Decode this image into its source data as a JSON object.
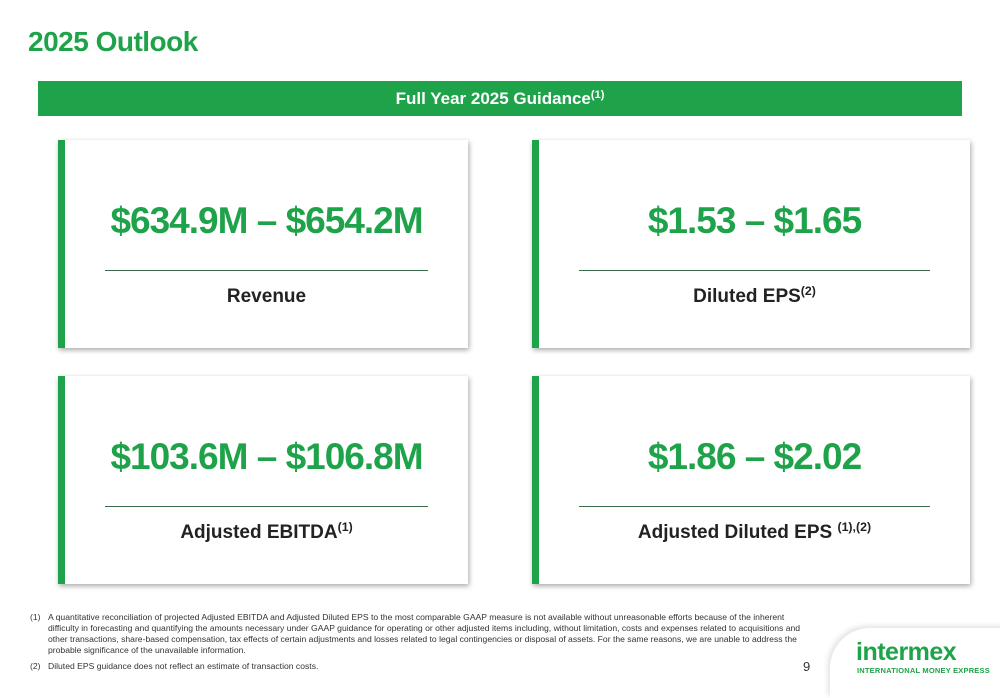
{
  "header": {
    "title": "2025 Outlook"
  },
  "banner": {
    "text": "Full Year 2025 Guidance",
    "note": "(1)"
  },
  "cards": [
    {
      "value": "$634.9M – $654.2M",
      "label": "Revenue"
    },
    {
      "value": "$1.53 – $1.65",
      "label": "Diluted EPS",
      "note": "(2)"
    },
    {
      "value": "$103.6M – $106.8M",
      "label": "Adjusted EBITDA",
      "note": "(1)"
    },
    {
      "value": "$1.86 – $2.02",
      "label": "Adjusted Diluted EPS ",
      "note": "(1),(2)"
    }
  ],
  "footnotes": [
    {
      "marker": "(1)",
      "text": "A quantitative reconciliation of projected Adjusted EBITDA and Adjusted Diluted EPS to the most comparable GAAP measure is not available without unreasonable efforts because of the inherent difficulty in forecasting and quantifying the amounts necessary under GAAP guidance for operating or other adjusted items including, without limitation, costs and expenses related to acquisitions and other transactions, share-based compensation, tax effects of certain adjustments and losses related to legal contingencies or disposal of assets. For the same reasons, we are unable to address the probable significance of the unavailable information."
    },
    {
      "marker": "(2)",
      "text": "Diluted EPS guidance does not reflect an estimate of transaction costs."
    }
  ],
  "page_number": "9",
  "logo": {
    "name": "intermex",
    "tagline": "INTERNATIONAL MONEY EXPRESS"
  }
}
